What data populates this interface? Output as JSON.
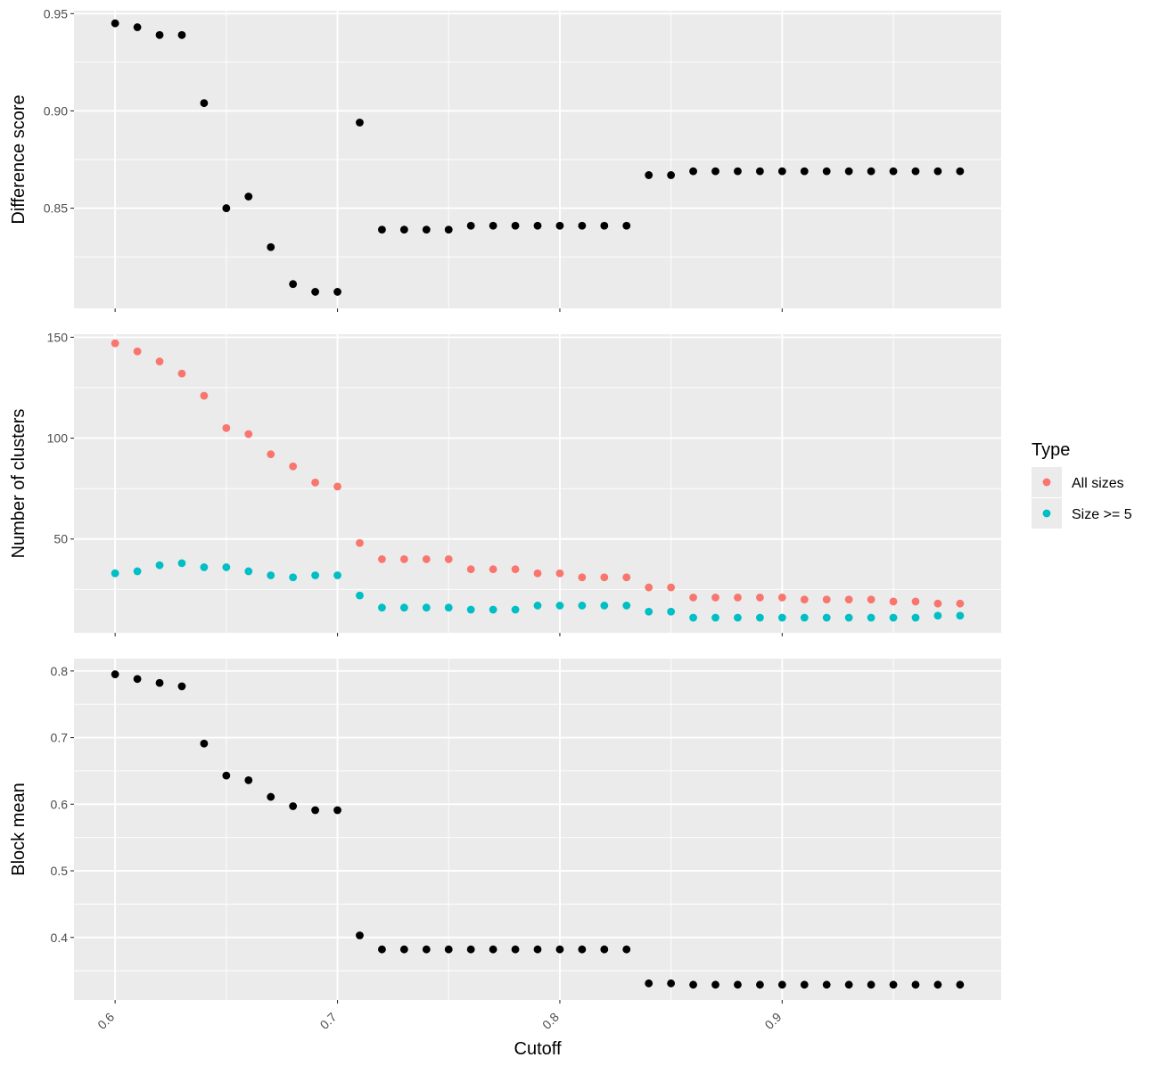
{
  "chart_data": {
    "type": "scatter",
    "xlabel": "Cutoff",
    "x_tick_labels": [
      "0.6",
      "0.7",
      "0.8",
      "0.9"
    ],
    "x_ticks": [
      0.6,
      0.7,
      0.8,
      0.9
    ],
    "xlim": [
      0.5815,
      0.9985
    ],
    "grid": true,
    "legend": {
      "title": "Type",
      "placement": "right",
      "entries": [
        {
          "label": "All sizes",
          "color": "#F8766D"
        },
        {
          "label": "Size >= 5",
          "color": "#00BFC4"
        }
      ]
    },
    "panels": [
      {
        "ylabel": "Difference score",
        "y_ticks": [
          0.85,
          0.9,
          0.95
        ],
        "y_tick_labels": [
          "0.85",
          "0.90",
          "0.95"
        ],
        "ylim": [
          0.7985,
          0.9515
        ],
        "series": [
          {
            "color": "#000000",
            "points": [
              [
                0.6,
                0.945
              ],
              [
                0.61,
                0.943
              ],
              [
                0.62,
                0.939
              ],
              [
                0.63,
                0.939
              ],
              [
                0.64,
                0.904
              ],
              [
                0.65,
                0.85
              ],
              [
                0.66,
                0.856
              ],
              [
                0.67,
                0.83
              ],
              [
                0.68,
                0.811
              ],
              [
                0.69,
                0.807
              ],
              [
                0.7,
                0.807
              ],
              [
                0.71,
                0.894
              ],
              [
                0.72,
                0.839
              ],
              [
                0.73,
                0.839
              ],
              [
                0.74,
                0.839
              ],
              [
                0.75,
                0.839
              ],
              [
                0.76,
                0.841
              ],
              [
                0.77,
                0.841
              ],
              [
                0.78,
                0.841
              ],
              [
                0.79,
                0.841
              ],
              [
                0.8,
                0.841
              ],
              [
                0.81,
                0.841
              ],
              [
                0.82,
                0.841
              ],
              [
                0.83,
                0.841
              ],
              [
                0.84,
                0.867
              ],
              [
                0.85,
                0.867
              ],
              [
                0.86,
                0.869
              ],
              [
                0.87,
                0.869
              ],
              [
                0.88,
                0.869
              ],
              [
                0.89,
                0.869
              ],
              [
                0.9,
                0.869
              ],
              [
                0.91,
                0.869
              ],
              [
                0.92,
                0.869
              ],
              [
                0.93,
                0.869
              ],
              [
                0.94,
                0.869
              ],
              [
                0.95,
                0.869
              ],
              [
                0.96,
                0.869
              ],
              [
                0.97,
                0.869
              ],
              [
                0.98,
                0.869
              ]
            ]
          }
        ]
      },
      {
        "ylabel": "Number of clusters",
        "y_ticks": [
          50,
          100,
          150
        ],
        "y_tick_labels": [
          "50",
          "100",
          "150"
        ],
        "ylim": [
          3.5,
          151.5
        ],
        "series": [
          {
            "name": "All sizes",
            "color": "#F8766D",
            "points": [
              [
                0.6,
                147
              ],
              [
                0.61,
                143
              ],
              [
                0.62,
                138
              ],
              [
                0.63,
                132
              ],
              [
                0.64,
                121
              ],
              [
                0.65,
                105
              ],
              [
                0.66,
                102
              ],
              [
                0.67,
                92
              ],
              [
                0.68,
                86
              ],
              [
                0.69,
                78
              ],
              [
                0.7,
                76
              ],
              [
                0.71,
                48
              ],
              [
                0.72,
                40
              ],
              [
                0.73,
                40
              ],
              [
                0.74,
                40
              ],
              [
                0.75,
                40
              ],
              [
                0.76,
                35
              ],
              [
                0.77,
                35
              ],
              [
                0.78,
                35
              ],
              [
                0.79,
                33
              ],
              [
                0.8,
                33
              ],
              [
                0.81,
                31
              ],
              [
                0.82,
                31
              ],
              [
                0.83,
                31
              ],
              [
                0.84,
                26
              ],
              [
                0.85,
                26
              ],
              [
                0.86,
                21
              ],
              [
                0.87,
                21
              ],
              [
                0.88,
                21
              ],
              [
                0.89,
                21
              ],
              [
                0.9,
                21
              ],
              [
                0.91,
                20
              ],
              [
                0.92,
                20
              ],
              [
                0.93,
                20
              ],
              [
                0.94,
                20
              ],
              [
                0.95,
                19
              ],
              [
                0.96,
                19
              ],
              [
                0.97,
                18
              ],
              [
                0.98,
                18
              ]
            ]
          },
          {
            "name": "Size >= 5",
            "color": "#00BFC4",
            "points": [
              [
                0.6,
                33
              ],
              [
                0.61,
                34
              ],
              [
                0.62,
                37
              ],
              [
                0.63,
                38
              ],
              [
                0.64,
                36
              ],
              [
                0.65,
                36
              ],
              [
                0.66,
                34
              ],
              [
                0.67,
                32
              ],
              [
                0.68,
                31
              ],
              [
                0.69,
                32
              ],
              [
                0.7,
                32
              ],
              [
                0.71,
                22
              ],
              [
                0.72,
                16
              ],
              [
                0.73,
                16
              ],
              [
                0.74,
                16
              ],
              [
                0.75,
                16
              ],
              [
                0.76,
                15
              ],
              [
                0.77,
                15
              ],
              [
                0.78,
                15
              ],
              [
                0.79,
                17
              ],
              [
                0.8,
                17
              ],
              [
                0.81,
                17
              ],
              [
                0.82,
                17
              ],
              [
                0.83,
                17
              ],
              [
                0.84,
                14
              ],
              [
                0.85,
                14
              ],
              [
                0.86,
                11
              ],
              [
                0.87,
                11
              ],
              [
                0.88,
                11
              ],
              [
                0.89,
                11
              ],
              [
                0.9,
                11
              ],
              [
                0.91,
                11
              ],
              [
                0.92,
                11
              ],
              [
                0.93,
                11
              ],
              [
                0.94,
                11
              ],
              [
                0.95,
                11
              ],
              [
                0.96,
                11
              ],
              [
                0.97,
                12
              ],
              [
                0.98,
                12
              ]
            ]
          }
        ]
      },
      {
        "ylabel": "Block mean",
        "y_ticks": [
          0.4,
          0.5,
          0.6,
          0.7,
          0.8
        ],
        "y_tick_labels": [
          "0.4",
          "0.5",
          "0.6",
          "0.7",
          "0.8"
        ],
        "ylim": [
          0.306,
          0.8185
        ],
        "series": [
          {
            "color": "#000000",
            "points": [
              [
                0.6,
                0.795
              ],
              [
                0.61,
                0.788
              ],
              [
                0.62,
                0.782
              ],
              [
                0.63,
                0.777
              ],
              [
                0.64,
                0.691
              ],
              [
                0.65,
                0.643
              ],
              [
                0.66,
                0.636
              ],
              [
                0.67,
                0.611
              ],
              [
                0.68,
                0.597
              ],
              [
                0.69,
                0.591
              ],
              [
                0.7,
                0.591
              ],
              [
                0.71,
                0.403
              ],
              [
                0.72,
                0.382
              ],
              [
                0.73,
                0.382
              ],
              [
                0.74,
                0.382
              ],
              [
                0.75,
                0.382
              ],
              [
                0.76,
                0.382
              ],
              [
                0.77,
                0.382
              ],
              [
                0.78,
                0.382
              ],
              [
                0.79,
                0.382
              ],
              [
                0.8,
                0.382
              ],
              [
                0.81,
                0.382
              ],
              [
                0.82,
                0.382
              ],
              [
                0.83,
                0.382
              ],
              [
                0.84,
                0.331
              ],
              [
                0.85,
                0.331
              ],
              [
                0.86,
                0.329
              ],
              [
                0.87,
                0.329
              ],
              [
                0.88,
                0.329
              ],
              [
                0.89,
                0.329
              ],
              [
                0.9,
                0.329
              ],
              [
                0.91,
                0.329
              ],
              [
                0.92,
                0.329
              ],
              [
                0.93,
                0.329
              ],
              [
                0.94,
                0.329
              ],
              [
                0.95,
                0.329
              ],
              [
                0.96,
                0.329
              ],
              [
                0.97,
                0.329
              ],
              [
                0.98,
                0.329
              ]
            ]
          }
        ]
      }
    ]
  }
}
